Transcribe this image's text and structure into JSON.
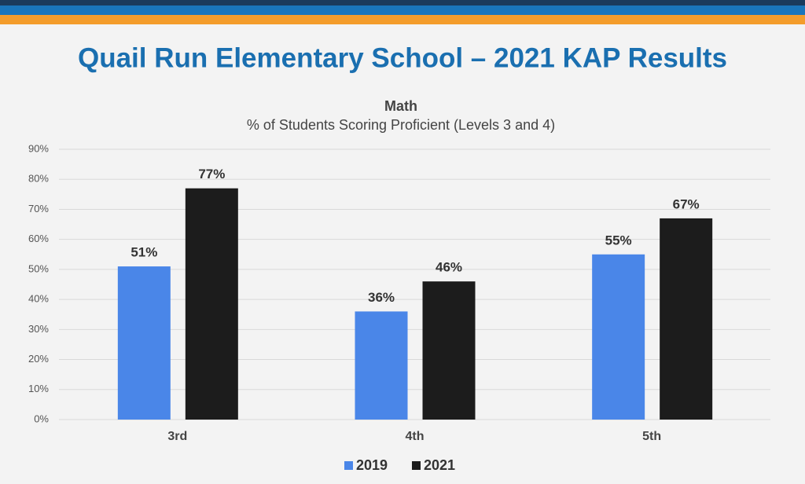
{
  "header": {
    "title": "Quail Run Elementary School – 2021 KAP Results"
  },
  "chart_data": {
    "type": "bar",
    "title": "Math",
    "subtitle": "% of Students Scoring Proficient (Levels 3 and 4)",
    "categories": [
      "3rd",
      "4th",
      "5th"
    ],
    "series": [
      {
        "name": "2019",
        "color": "#4a86e8",
        "values": [
          51,
          36,
          55
        ],
        "value_labels": [
          "51%",
          "36%",
          "55%"
        ]
      },
      {
        "name": "2021",
        "color": "#1c1c1c",
        "values": [
          77,
          46,
          67
        ],
        "value_labels": [
          "77%",
          "46%",
          "67%"
        ]
      }
    ],
    "ylim": [
      0,
      90
    ],
    "yticks": [
      {
        "value": 0,
        "label": "0%"
      },
      {
        "value": 10,
        "label": "10%"
      },
      {
        "value": 20,
        "label": "20%"
      },
      {
        "value": 30,
        "label": "30%"
      },
      {
        "value": 40,
        "label": "40%"
      },
      {
        "value": 50,
        "label": "50%"
      },
      {
        "value": 60,
        "label": "60%"
      },
      {
        "value": 70,
        "label": "70%"
      },
      {
        "value": 80,
        "label": "80%"
      },
      {
        "value": 90,
        "label": "90%"
      }
    ],
    "grid": true,
    "legend": "bottom"
  }
}
